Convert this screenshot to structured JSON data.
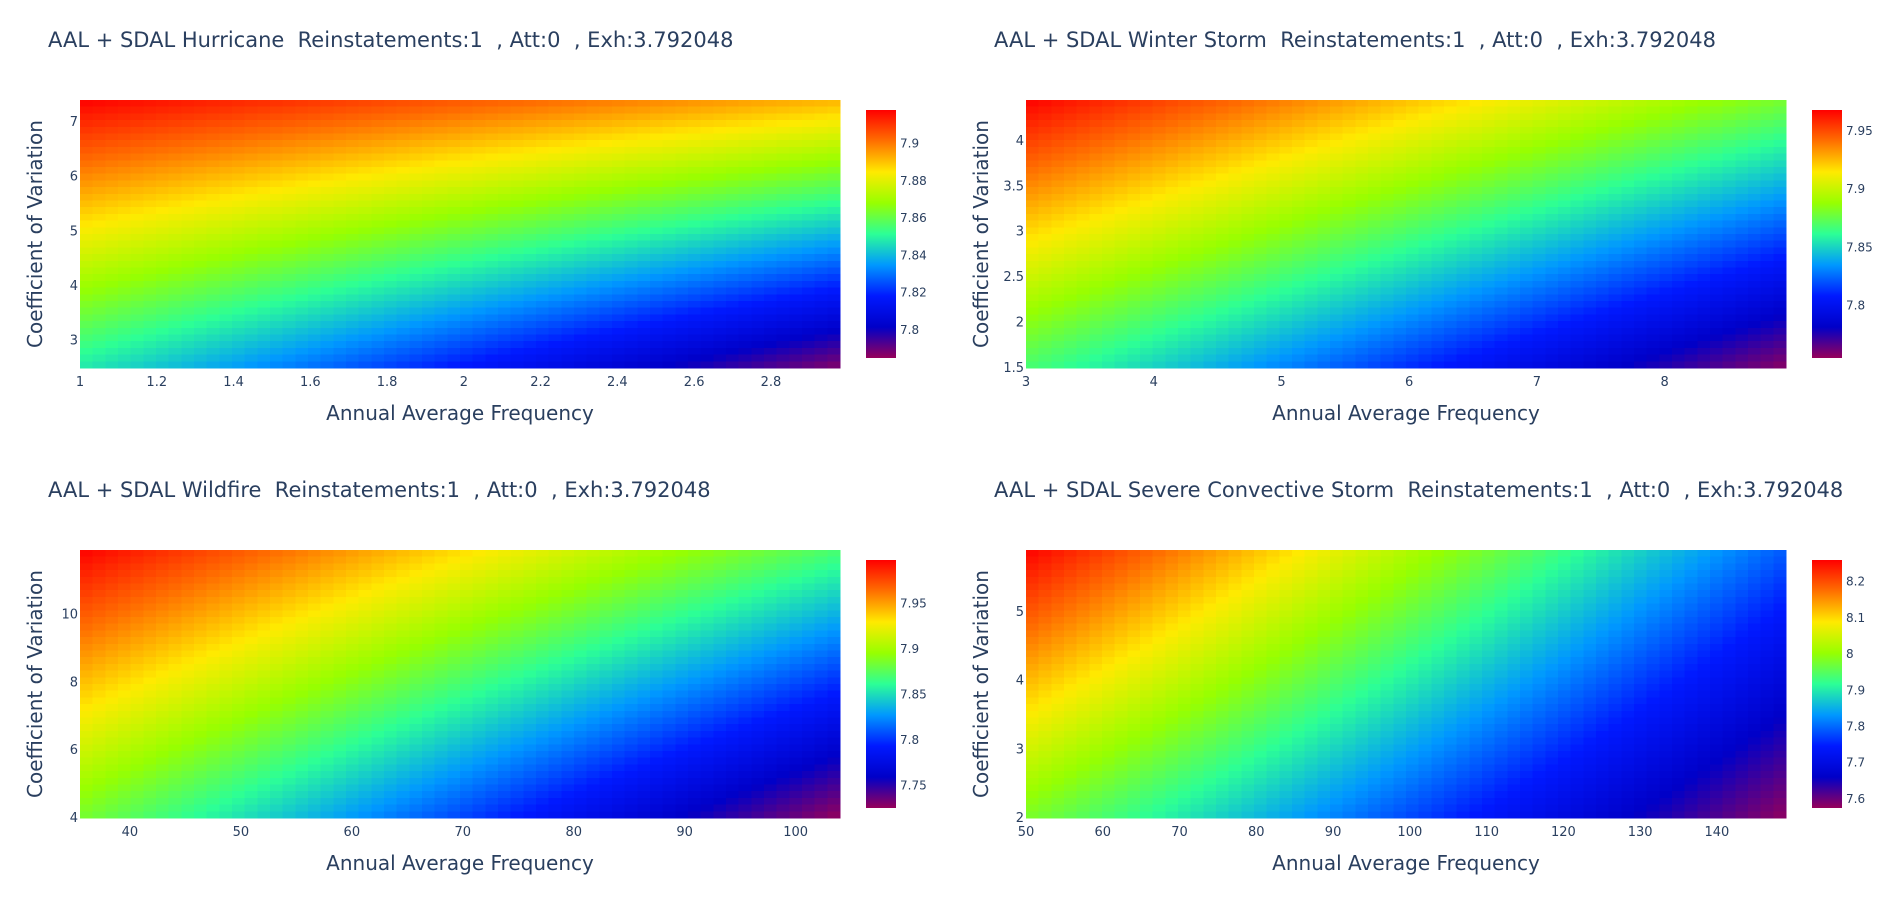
{
  "chart_data": [
    {
      "type": "heatmap",
      "title": "AAL + SDAL Hurricane  Reinstatements:1  , Att:0  , Exh:3.792048",
      "xlabel": "Annual Average Frequency",
      "ylabel": "Coefficient of Variation",
      "xlim": [
        1,
        2.98
      ],
      "ylim": [
        2.5,
        7.4
      ],
      "xticks": [
        1,
        1.2,
        1.4,
        1.6,
        1.8,
        2,
        2.2,
        2.4,
        2.6,
        2.8
      ],
      "yticks": [
        3,
        4,
        5,
        6,
        7
      ],
      "zlim": [
        7.785,
        7.918
      ],
      "colorbar_ticks": [
        7.8,
        7.82,
        7.84,
        7.86,
        7.88,
        7.9
      ],
      "corner_values": {
        "top_left": 7.918,
        "top_right": 7.892,
        "bottom_left": 7.848,
        "bottom_right": 7.787
      },
      "colorscale": "rainbow"
    },
    {
      "type": "heatmap",
      "title": "AAL + SDAL Winter Storm  Reinstatements:1  , Att:0  , Exh:3.792048",
      "xlabel": "Annual Average Frequency",
      "ylabel": "Coefficient of Variation",
      "xlim": [
        3,
        8.95
      ],
      "ylim": [
        1.5,
        4.45
      ],
      "xticks": [
        3,
        4,
        5,
        6,
        7,
        8
      ],
      "yticks": [
        1.5,
        2,
        2.5,
        3,
        3.5,
        4
      ],
      "zlim": [
        7.755,
        7.968
      ],
      "colorbar_ticks": [
        7.8,
        7.85,
        7.9,
        7.95
      ],
      "corner_values": {
        "top_left": 7.968,
        "top_right": 7.88,
        "bottom_left": 7.868,
        "bottom_right": 7.757
      },
      "colorscale": "rainbow"
    },
    {
      "type": "heatmap",
      "title": "AAL + SDAL Wildfire  Reinstatements:1  , Att:0  , Exh:3.792048",
      "xlabel": "Annual Average Frequency",
      "ylabel": "Coefficient of Variation",
      "xlim": [
        35.5,
        104
      ],
      "ylim": [
        4,
        11.9
      ],
      "xticks": [
        40,
        50,
        60,
        70,
        80,
        90,
        100
      ],
      "yticks": [
        4,
        6,
        8,
        10
      ],
      "zlim": [
        7.725,
        7.998
      ],
      "colorbar_ticks": [
        7.75,
        7.8,
        7.85,
        7.9,
        7.95
      ],
      "corner_values": {
        "top_left": 7.998,
        "top_right": 7.87,
        "bottom_left": 7.885,
        "bottom_right": 7.725
      },
      "colorscale": "rainbow"
    },
    {
      "type": "heatmap",
      "title": "AAL + SDAL Severe Convective Storm  Reinstatements:1  , Att:0  , Exh:3.792048",
      "xlabel": "Annual Average Frequency",
      "ylabel": "Coefficient of Variation",
      "xlim": [
        50,
        149
      ],
      "ylim": [
        2,
        5.9
      ],
      "xticks": [
        50,
        60,
        70,
        80,
        90,
        100,
        110,
        120,
        130,
        140
      ],
      "yticks": [
        2,
        3,
        4,
        5
      ],
      "zlim": [
        7.575,
        8.26
      ],
      "colorbar_ticks": [
        7.6,
        7.7,
        7.8,
        7.9,
        8,
        8.1,
        8.2
      ],
      "corner_values": {
        "top_left": 8.26,
        "top_right": 7.79,
        "bottom_left": 7.98,
        "bottom_right": 7.578
      },
      "colorscale": "rainbow"
    }
  ]
}
